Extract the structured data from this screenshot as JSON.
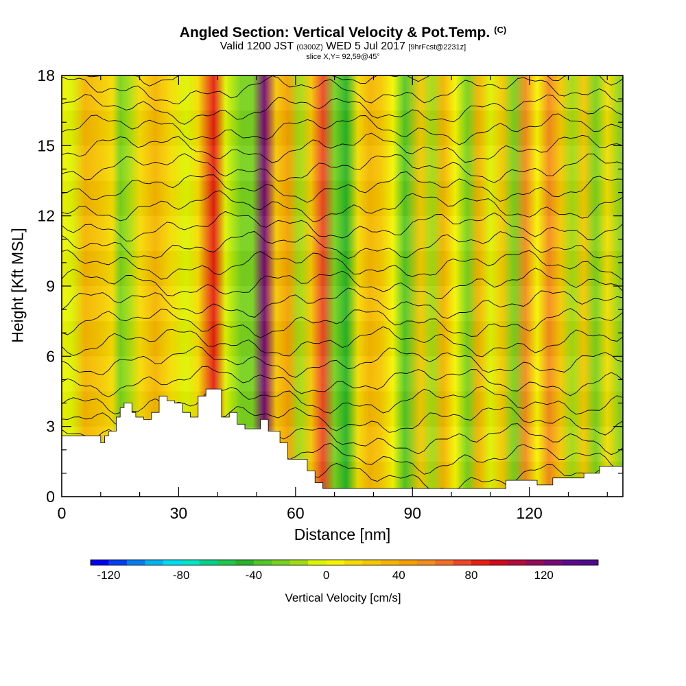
{
  "title": {
    "main": "Angled Section: Vertical Velocity & Pot.Temp.",
    "main_mark": "(C)",
    "valid": "Valid 1200 JST",
    "valid_z": "(0300Z)",
    "date": "WED 5 Jul 2017",
    "fcst": "[9hrFcst@2231z]",
    "slice": "slice X,Y= 92,59@45°"
  },
  "chart_data": {
    "type": "heatmap",
    "title": "Angled Section: Vertical Velocity & Pot.Temp. (C)",
    "xlabel": "Distance [nm]",
    "ylabel": "Height [Kft MSL]",
    "xlim": [
      0,
      144
    ],
    "ylim": [
      0,
      18
    ],
    "xticks": [
      0,
      30,
      60,
      90,
      120
    ],
    "yticks": [
      0,
      3,
      6,
      9,
      12,
      15,
      18
    ],
    "colorbar": {
      "label": "Vertical Velocity [cm/s]",
      "ticks": [
        -120,
        -80,
        -40,
        0,
        40,
        80,
        120
      ],
      "range": [
        -130,
        150
      ],
      "step": 10,
      "colors": [
        "#0000f0",
        "#0040f0",
        "#0080f0",
        "#00b4f0",
        "#00dcf0",
        "#00e6c8",
        "#00d28c",
        "#1ec850",
        "#28b428",
        "#50c828",
        "#78d21e",
        "#a0dc14",
        "#dcf500",
        "#f5f500",
        "#f5dc00",
        "#f5c800",
        "#f5b400",
        "#f5a000",
        "#f58c1e",
        "#f56e28",
        "#f04628",
        "#e61e14",
        "#d20a1e",
        "#b40a3c",
        "#960a5a",
        "#780a78",
        "#5a0a8c",
        "#500a8c"
      ]
    },
    "potential_temperature": {
      "label": "Pot.Temp. (C)",
      "contour_interval": 1,
      "range": [
        20,
        41
      ]
    },
    "columns": [
      {
        "x": 0,
        "w": 4
      },
      {
        "x": 2.5,
        "w": -6
      },
      {
        "x": 6,
        "w": 30
      },
      {
        "x": 10,
        "w": 22
      },
      {
        "x": 13,
        "w": 10
      },
      {
        "x": 15,
        "w": -30
      },
      {
        "x": 17,
        "w": -20
      },
      {
        "x": 20,
        "w": 16
      },
      {
        "x": 24,
        "w": 30
      },
      {
        "x": 28,
        "w": 10
      },
      {
        "x": 32,
        "w": -10
      },
      {
        "x": 35,
        "w": 14
      },
      {
        "x": 39,
        "w": 80
      },
      {
        "x": 42,
        "w": -10
      },
      {
        "x": 46,
        "w": -24
      },
      {
        "x": 49,
        "w": -30
      },
      {
        "x": 52,
        "w": 120
      },
      {
        "x": 55,
        "w": 24
      },
      {
        "x": 58,
        "w": 44
      },
      {
        "x": 61,
        "w": -16
      },
      {
        "x": 64,
        "w": 20
      },
      {
        "x": 67,
        "w": 70
      },
      {
        "x": 70,
        "w": -30
      },
      {
        "x": 73,
        "w": -50
      },
      {
        "x": 76,
        "w": 10
      },
      {
        "x": 79,
        "w": 30
      },
      {
        "x": 82,
        "w": 20
      },
      {
        "x": 85,
        "w": 8
      },
      {
        "x": 88,
        "w": -40
      },
      {
        "x": 92,
        "w": 24
      },
      {
        "x": 95,
        "w": -20
      },
      {
        "x": 98,
        "w": 30
      },
      {
        "x": 101,
        "w": 6
      },
      {
        "x": 104,
        "w": -24
      },
      {
        "x": 107,
        "w": 30
      },
      {
        "x": 110,
        "w": -10
      },
      {
        "x": 113,
        "w": 20
      },
      {
        "x": 116,
        "w": -30
      },
      {
        "x": 119,
        "w": 54
      },
      {
        "x": 122,
        "w": 0
      },
      {
        "x": 125,
        "w": 50
      },
      {
        "x": 128,
        "w": 24
      },
      {
        "x": 131,
        "w": -20
      },
      {
        "x": 134,
        "w": 24
      },
      {
        "x": 137,
        "w": -26
      },
      {
        "x": 140,
        "w": 10
      },
      {
        "x": 144,
        "w": -30
      }
    ],
    "terrain": [
      [
        0,
        2.6
      ],
      [
        4,
        2.6
      ],
      [
        8,
        2.6
      ],
      [
        10,
        2.3
      ],
      [
        11,
        2.6
      ],
      [
        12,
        2.8
      ],
      [
        14,
        3.4
      ],
      [
        15,
        3.8
      ],
      [
        16,
        4.0
      ],
      [
        18,
        3.6
      ],
      [
        19,
        3.4
      ],
      [
        21,
        3.3
      ],
      [
        23,
        3.6
      ],
      [
        25,
        4.3
      ],
      [
        27,
        4.1
      ],
      [
        29,
        4.0
      ],
      [
        31,
        3.6
      ],
      [
        33,
        3.4
      ],
      [
        35,
        4.3
      ],
      [
        37,
        4.6
      ],
      [
        39,
        4.6
      ],
      [
        41,
        3.4
      ],
      [
        43,
        3.6
      ],
      [
        45,
        3.1
      ],
      [
        47,
        2.9
      ],
      [
        49,
        2.9
      ],
      [
        51,
        3.3
      ],
      [
        53,
        2.8
      ],
      [
        56,
        2.3
      ],
      [
        58,
        1.6
      ],
      [
        61,
        1.6
      ],
      [
        63,
        1.1
      ],
      [
        65,
        0.6
      ],
      [
        67,
        0.35
      ],
      [
        80,
        0.35
      ],
      [
        100,
        0.35
      ],
      [
        110,
        0.35
      ],
      [
        114,
        0.7
      ],
      [
        118,
        0.7
      ],
      [
        122,
        0.5
      ],
      [
        126,
        0.8
      ],
      [
        130,
        0.8
      ],
      [
        134,
        1.0
      ],
      [
        138,
        1.3
      ],
      [
        144,
        1.3
      ]
    ]
  }
}
